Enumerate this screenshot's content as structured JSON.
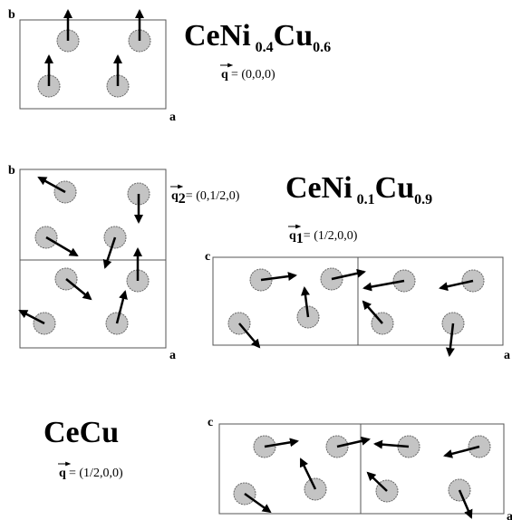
{
  "panel1": {
    "axis_b": "b",
    "axis_a": "a",
    "formula": [
      "CeNi",
      "0.4",
      "Cu",
      "0.6"
    ],
    "q_symbol": "q",
    "q_value": "= (0,0,0)"
  },
  "panel2": {
    "axis_b": "b",
    "axis_a": "a",
    "q2_symbol": "q",
    "q2_sub": "2",
    "q2_value": "= (0,1/2,0)",
    "formula": [
      "CeNi",
      "0.1",
      "Cu",
      "0.9"
    ],
    "q1_symbol": "q",
    "q1_sub": "1",
    "q1_value": "= (1/2,0,0)",
    "axis_c": "c",
    "axis_a2": "a"
  },
  "panel3": {
    "formula": "CeCu",
    "q_symbol": "q",
    "q_value": "= (1/2,0,0)",
    "axis_c": "c",
    "axis_a": "a"
  }
}
